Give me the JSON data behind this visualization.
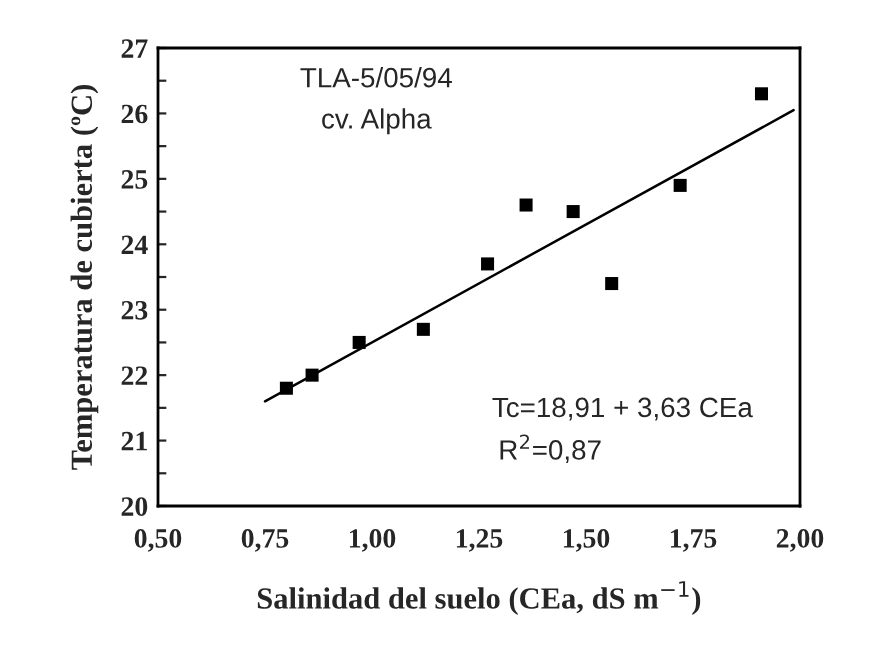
{
  "chart_data": {
    "type": "scatter",
    "xlabel": "Salinidad del suelo (CEa, dS m$^{−1}$)",
    "ylabel": "Temperatura de cubierta (ºC)",
    "annotations": [
      "TLA-5/05/94",
      "cv. Alpha",
      "Tc=18,91 + 3,63 CEa",
      "R$^{2}$=0,87"
    ],
    "series": [
      {
        "color": "#000000",
        "marker": "square",
        "x": [
          0.8,
          0.86,
          0.97,
          1.12,
          1.27,
          1.36,
          1.47,
          1.56,
          1.72,
          1.91
        ],
        "values": [
          21.8,
          22.0,
          22.5,
          22.7,
          23.7,
          24.6,
          24.5,
          23.4,
          24.9,
          26.3
        ]
      },
      {
        "type": "line",
        "color": "#000000",
        "marker": "none",
        "line_style": "solid",
        "x": [
          0.75,
          1.985
        ],
        "values": [
          21.6,
          26.05
        ]
      }
    ],
    "xlim": [
      0.5,
      2.0
    ],
    "xticks": [
      {
        "value": 0.5,
        "label": "0,50"
      },
      {
        "value": 0.75,
        "label": "0,75"
      },
      {
        "value": 1.0,
        "label": "1,00"
      },
      {
        "value": 1.25,
        "label": "1,25"
      },
      {
        "value": 1.5,
        "label": "1,50"
      },
      {
        "value": 1.75,
        "label": "1,75"
      },
      {
        "value": 2.0,
        "label": "2,00"
      }
    ],
    "ylim": [
      20,
      27
    ],
    "yticks": [
      20,
      {
        "value": 20.5,
        "label": null
      },
      21,
      {
        "value": 21.5,
        "label": null
      },
      22,
      {
        "value": 22.5,
        "label": null
      },
      23,
      {
        "value": 23.5,
        "label": null
      },
      24,
      {
        "value": 24.5,
        "label": null
      },
      25,
      {
        "value": 25.5,
        "label": null
      },
      26,
      {
        "value": 26.5,
        "label": null
      },
      27
    ],
    "grid": false,
    "legend": false
  }
}
